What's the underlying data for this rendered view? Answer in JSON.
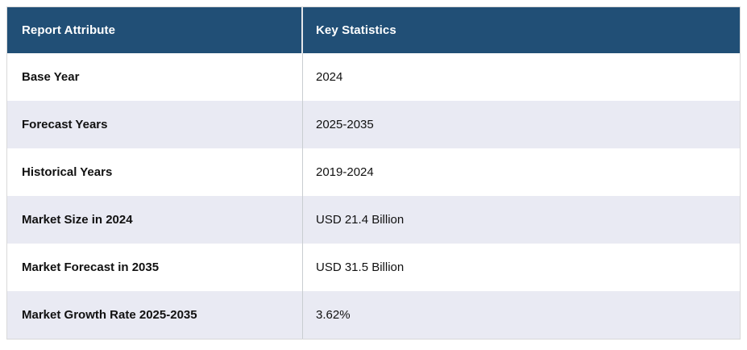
{
  "chart_data": {
    "type": "table",
    "title": "Report Attribute / Key Statistics summary table",
    "columns": [
      "Report Attribute",
      "Key Statistics"
    ],
    "rows": [
      [
        "Base Year",
        "2024"
      ],
      [
        "Forecast Years",
        "2025-2035"
      ],
      [
        "Historical Years",
        "2019-2024"
      ],
      [
        "Market Size in 2024",
        "USD 21.4 Billion"
      ],
      [
        "Market Forecast in 2035",
        "USD 31.5 Billion"
      ],
      [
        "Market Growth Rate 2025-2035",
        "3.62%"
      ]
    ],
    "layout": {
      "header_row": true,
      "alternating_row_colors": true,
      "first_column_bold": true
    }
  },
  "colors": {
    "header_bg": "#214F76",
    "header_text": "#FFFFFF",
    "row_alt_bg": "#E9EAF3",
    "row_bg": "#FFFFFF",
    "outer_border": "#D9D9D9",
    "divider": "#C9CDD1",
    "text": "#111111"
  }
}
